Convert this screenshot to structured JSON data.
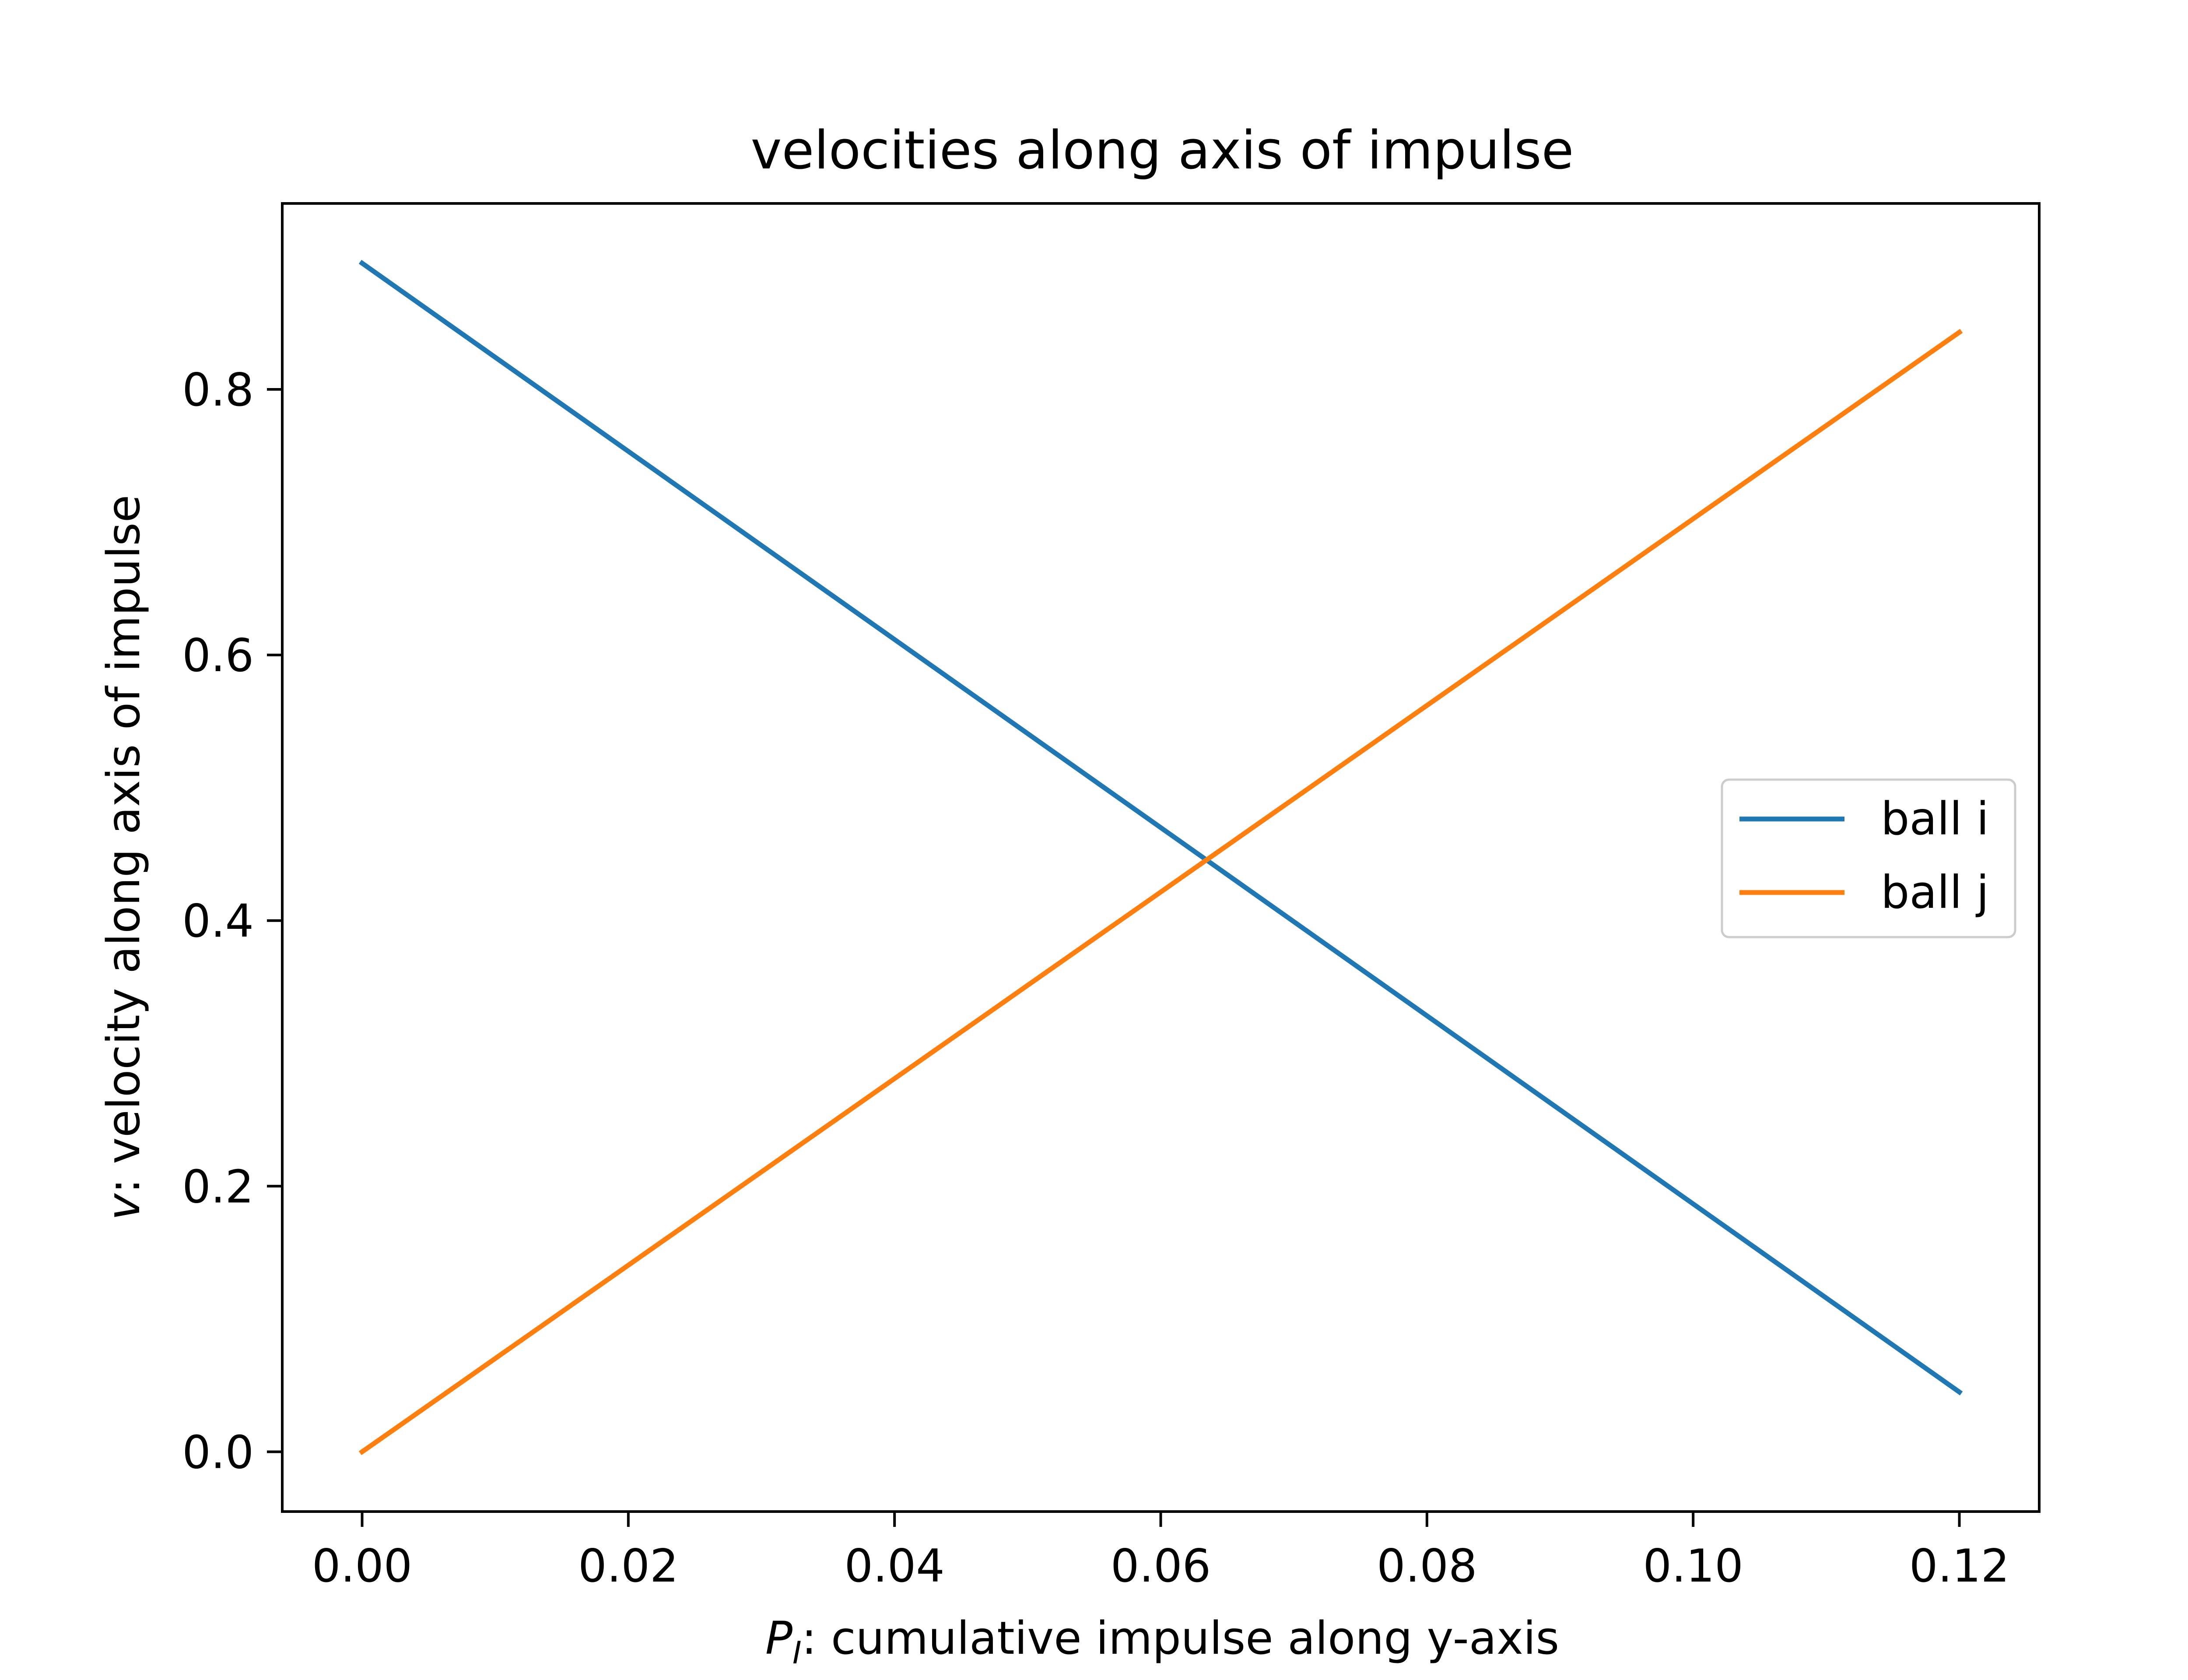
{
  "chart_data": {
    "type": "line",
    "title": "velocities along axis of impulse",
    "xlabel": {
      "main": "P",
      "subscript": "I",
      "rest": ": cumulative impulse along y-axis"
    },
    "ylabel": {
      "main": "v",
      "rest": ": velocity along axis of impulse"
    },
    "xlim": [
      -0.006,
      0.126
    ],
    "ylim": [
      -0.045,
      0.94
    ],
    "xticks": [
      0.0,
      0.02,
      0.04,
      0.06,
      0.08,
      0.1,
      0.12
    ],
    "xtick_labels": [
      "0.00",
      "0.02",
      "0.04",
      "0.06",
      "0.08",
      "0.10",
      "0.12"
    ],
    "yticks": [
      0.0,
      0.2,
      0.4,
      0.6,
      0.8
    ],
    "ytick_labels": [
      "0.0",
      "0.2",
      "0.4",
      "0.6",
      "0.8"
    ],
    "grid": false,
    "legend_position": "center-right",
    "series": [
      {
        "name": "ball i",
        "color": "#1f77b4",
        "x": [
          0.0,
          0.12
        ],
        "y": [
          0.895,
          0.045
        ]
      },
      {
        "name": "ball j",
        "color": "#ff7f0e",
        "x": [
          0.0,
          0.12
        ],
        "y": [
          0.0,
          0.843
        ]
      }
    ]
  }
}
